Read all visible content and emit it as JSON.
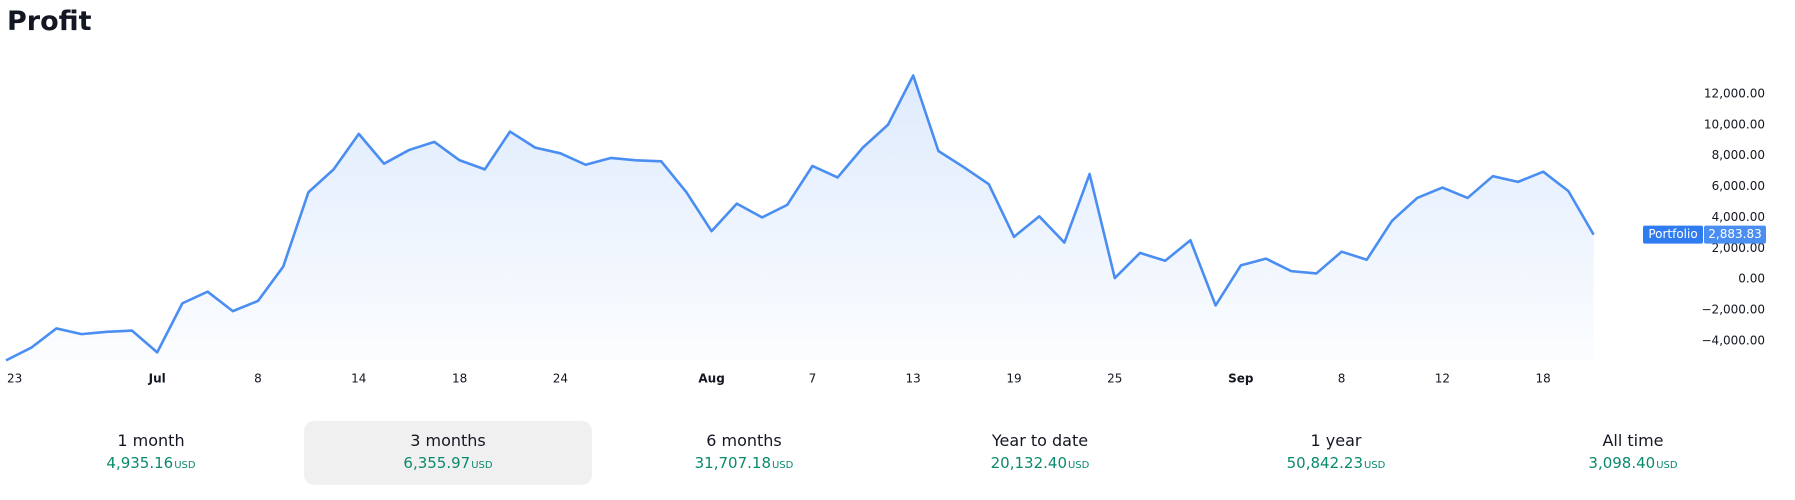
{
  "chart_data": {
    "type": "line",
    "title": "Profit",
    "categories": [
      "23",
      null,
      null,
      null,
      null,
      null,
      "Jul",
      null,
      null,
      null,
      "8",
      null,
      null,
      null,
      "14",
      null,
      null,
      null,
      "18",
      null,
      null,
      null,
      "24",
      null,
      null,
      null,
      null,
      null,
      "Aug",
      null,
      null,
      null,
      "7",
      null,
      null,
      null,
      "13",
      null,
      null,
      null,
      "19",
      null,
      null,
      null,
      "25",
      null,
      null,
      null,
      null,
      "Sep",
      null,
      null,
      null,
      "8",
      null,
      null,
      null,
      "12",
      null,
      null,
      null,
      "18",
      null,
      null
    ],
    "series": [
      {
        "name": "Portfolio",
        "color": "#4a8ef2",
        "values": [
          -5260,
          -4440,
          -3190,
          -3560,
          -3410,
          -3330,
          -4740,
          -1560,
          -810,
          -2070,
          -1410,
          810,
          5630,
          7110,
          9410,
          7480,
          8370,
          8890,
          7700,
          7110,
          9560,
          8520,
          8150,
          7410,
          7850,
          7700,
          7630,
          5630,
          3110,
          4890,
          4000,
          4810,
          7330,
          6590,
          8520,
          10000,
          13190,
          8300,
          7260,
          6150,
          2740,
          4070,
          2370,
          6810,
          70,
          1700,
          1190,
          2520,
          -1700,
          890,
          1330,
          520,
          370,
          1780,
          1260,
          3780,
          5260,
          5930,
          5260,
          6670,
          6300,
          6960,
          5700,
          2883.83
        ],
        "value_labels": [
          null,
          null,
          null,
          null,
          null,
          null,
          null,
          null,
          null,
          null,
          null,
          null,
          null,
          null,
          null,
          null,
          null,
          null,
          null,
          null,
          null,
          null,
          null,
          null,
          null,
          null,
          null,
          null,
          null,
          null,
          null,
          null,
          null,
          null,
          null,
          null,
          null,
          null,
          null,
          null,
          null,
          null,
          null,
          null,
          null,
          null,
          null,
          null,
          null,
          null,
          null,
          null,
          null,
          null,
          null,
          null,
          null,
          null,
          null,
          null,
          null,
          null,
          null,
          "2,883.83"
        ]
      }
    ],
    "ylim": [
      -5300,
      14000
    ],
    "yticks": [
      {
        "value": -4000,
        "label": "−4,000.00"
      },
      {
        "value": -2000,
        "label": "−2,000.00"
      },
      {
        "value": 0,
        "label": "0.00"
      },
      {
        "value": 2000,
        "label": "2,000.00"
      },
      {
        "value": 4000,
        "label": "4,000.00"
      },
      {
        "value": 6000,
        "label": "6,000.00"
      },
      {
        "value": 8000,
        "label": "8,000.00"
      },
      {
        "value": 10000,
        "label": "10,000.00"
      },
      {
        "value": 12000,
        "label": "12,000.00"
      }
    ],
    "grid": false,
    "area_fill": true
  },
  "periods": {
    "selected": 1,
    "items": [
      {
        "label": "1 month",
        "value": "4,935.16",
        "currency": "USD"
      },
      {
        "label": "3 months",
        "value": "6,355.97",
        "currency": "USD"
      },
      {
        "label": "6 months",
        "value": "31,707.18",
        "currency": "USD"
      },
      {
        "label": "Year to date",
        "value": "20,132.40",
        "currency": "USD"
      },
      {
        "label": "1 year",
        "value": "50,842.23",
        "currency": "USD"
      },
      {
        "label": "All time",
        "value": "3,098.40",
        "currency": "USD"
      }
    ]
  }
}
